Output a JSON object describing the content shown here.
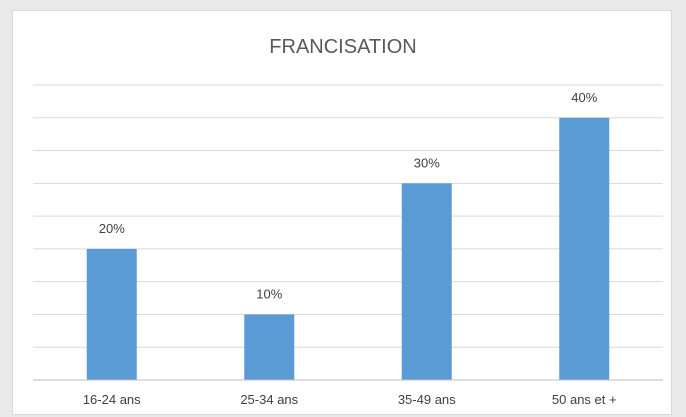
{
  "chart_data": {
    "type": "bar",
    "title": "FRANCISATION",
    "categories": [
      "16-24 ans",
      "25-34 ans",
      "35-49 ans",
      "50 ans et +"
    ],
    "values": [
      20,
      10,
      30,
      40
    ],
    "data_labels": [
      "20%",
      "10%",
      "30%",
      "40%"
    ],
    "ylim": [
      0,
      45
    ],
    "y_grid_step": 5,
    "grid": true,
    "legend": "none",
    "xlabel": "",
    "ylabel": "",
    "colors": {
      "bar": "#5b9bd5",
      "grid": "#d9d9d9",
      "axis": "#bfbfbf"
    }
  }
}
